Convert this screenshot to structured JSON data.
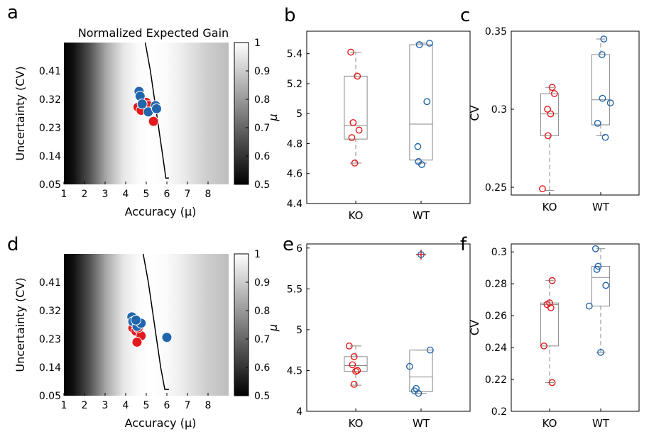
{
  "chart_data": [
    {
      "panel": "a",
      "type": "heatmap",
      "title": "Normalized Expected Gain",
      "xlabel": "Accuracy (μ)",
      "ylabel": "Uncertainty (CV)",
      "xlim": [
        1,
        9
      ],
      "ylim": [
        0.05,
        0.5
      ],
      "xticks": [
        "1",
        "2",
        "3",
        "4",
        "5",
        "6",
        "7",
        "8"
      ],
      "yticks": [
        "0.05",
        "0.14",
        "0.23",
        "0.32",
        "0.41"
      ],
      "colorbar": {
        "range": [
          0.5,
          1
        ],
        "ticks": [
          "0.5",
          "0.6",
          "0.7",
          "0.8",
          "0.9",
          "1"
        ]
      },
      "optimal_curve": [
        [
          4.95,
          0.5
        ],
        [
          5.2,
          0.41
        ],
        [
          5.4,
          0.32
        ],
        [
          5.6,
          0.23
        ],
        [
          5.8,
          0.14
        ],
        [
          5.95,
          0.07
        ],
        [
          6.1,
          0.07
        ]
      ],
      "series": [
        {
          "group": "KO",
          "color": "#e31a1c",
          "points": [
            [
              4.6,
              0.295
            ],
            [
              4.75,
              0.285
            ],
            [
              5.0,
              0.31
            ],
            [
              5.35,
              0.25
            ],
            [
              5.1,
              0.3
            ]
          ]
        },
        {
          "group": "WT",
          "color": "#2166ac",
          "points": [
            [
              4.65,
              0.345
            ],
            [
              4.7,
              0.33
            ],
            [
              4.8,
              0.305
            ],
            [
              5.1,
              0.28
            ],
            [
              5.45,
              0.3
            ],
            [
              5.5,
              0.29
            ]
          ]
        }
      ]
    },
    {
      "panel": "b",
      "type": "box",
      "ylabel": "μ",
      "ylim": [
        4.4,
        5.55
      ],
      "yticks": [
        "4.4",
        "4.6",
        "4.8",
        "5",
        "5.2",
        "5.4"
      ],
      "categories": [
        "KO",
        "WT"
      ],
      "boxes": [
        {
          "q1": 4.83,
          "median": 4.92,
          "q3": 5.25,
          "whislo": 4.67,
          "whishi": 5.41,
          "outliers": []
        },
        {
          "q1": 4.69,
          "median": 4.93,
          "q3": 5.46,
          "whislo": 4.67,
          "whishi": 5.47,
          "outliers": []
        }
      ],
      "points": [
        [
          [
            -0.15,
            5.41
          ],
          [
            0.05,
            5.25
          ],
          [
            -0.08,
            4.94
          ],
          [
            0.1,
            4.89
          ],
          [
            -0.12,
            4.84
          ],
          [
            -0.03,
            4.67
          ]
        ],
        [
          [
            -0.05,
            5.46
          ],
          [
            0.26,
            5.47
          ],
          [
            0.18,
            5.08
          ],
          [
            -0.1,
            4.78
          ],
          [
            -0.08,
            4.68
          ],
          [
            0.02,
            4.66
          ]
        ]
      ]
    },
    {
      "panel": "c",
      "type": "box",
      "ylabel": "CV",
      "ylim": [
        0.245,
        0.35
      ],
      "yticks": [
        "0.25",
        "0.3",
        "0.35"
      ],
      "categories": [
        "KO",
        "WT"
      ],
      "boxes": [
        {
          "q1": 0.283,
          "median": 0.297,
          "q3": 0.31,
          "whislo": 0.248,
          "whishi": 0.314,
          "outliers": []
        },
        {
          "q1": 0.29,
          "median": 0.306,
          "q3": 0.335,
          "whislo": 0.283,
          "whishi": 0.345,
          "outliers": []
        }
      ],
      "points": [
        [
          [
            0.1,
            0.314
          ],
          [
            0.19,
            0.31
          ],
          [
            -0.08,
            0.3
          ],
          [
            0.04,
            0.297
          ],
          [
            -0.06,
            0.283
          ],
          [
            -0.28,
            0.249
          ]
        ],
        [
          [
            0.12,
            0.345
          ],
          [
            0.05,
            0.335
          ],
          [
            0.07,
            0.307
          ],
          [
            0.38,
            0.304
          ],
          [
            -0.12,
            0.291
          ],
          [
            0.18,
            0.282
          ]
        ]
      ]
    },
    {
      "panel": "d",
      "type": "heatmap",
      "title": "",
      "xlabel": "Accuracy (μ)",
      "ylabel": "Uncertainty (CV)",
      "xlim": [
        1,
        9
      ],
      "ylim": [
        0.05,
        0.5
      ],
      "xticks": [
        "1",
        "2",
        "3",
        "4",
        "5",
        "6",
        "7",
        "8"
      ],
      "yticks": [
        "0.05",
        "0.14",
        "0.23",
        "0.32",
        "0.41"
      ],
      "colorbar": {
        "range": [
          0.5,
          1
        ],
        "ticks": [
          "0.5",
          "0.6",
          "0.7",
          "0.8",
          "0.9",
          "1"
        ]
      },
      "optimal_curve": [
        [
          4.85,
          0.5
        ],
        [
          5.1,
          0.41
        ],
        [
          5.3,
          0.32
        ],
        [
          5.5,
          0.23
        ],
        [
          5.7,
          0.14
        ],
        [
          5.9,
          0.07
        ],
        [
          6.1,
          0.07
        ]
      ],
      "series": [
        {
          "group": "KO",
          "color": "#e31a1c",
          "points": [
            [
              4.35,
              0.265
            ],
            [
              4.5,
              0.255
            ],
            [
              4.75,
              0.24
            ],
            [
              4.55,
              0.22
            ],
            [
              4.6,
              0.265
            ]
          ]
        },
        {
          "group": "WT",
          "color": "#2166ac",
          "points": [
            [
              4.3,
              0.3
            ],
            [
              4.35,
              0.285
            ],
            [
              4.55,
              0.27
            ],
            [
              4.75,
              0.28
            ],
            [
              6.0,
              0.235
            ],
            [
              4.5,
              0.29
            ]
          ]
        }
      ]
    },
    {
      "panel": "e",
      "type": "box",
      "ylabel": "μ",
      "ylim": [
        4.0,
        6.05
      ],
      "yticks": [
        "4",
        "4.5",
        "5",
        "5.5",
        "6"
      ],
      "categories": [
        "KO",
        "WT"
      ],
      "boxes": [
        {
          "q1": 4.49,
          "median": 4.56,
          "q3": 4.67,
          "whislo": 4.32,
          "whishi": 4.8,
          "outliers": []
        },
        {
          "q1": 4.24,
          "median": 4.42,
          "q3": 4.75,
          "whislo": 4.22,
          "whishi": 4.75,
          "outliers": [
            5.92
          ]
        }
      ],
      "points": [
        [
          [
            -0.2,
            4.8
          ],
          [
            -0.05,
            4.67
          ],
          [
            -0.1,
            4.57
          ],
          [
            0.05,
            4.5
          ],
          [
            0.0,
            4.49
          ],
          [
            -0.05,
            4.33
          ]
        ],
        [
          [
            -0.35,
            4.55
          ],
          [
            0.28,
            4.75
          ],
          [
            -0.15,
            4.28
          ],
          [
            -0.2,
            4.25
          ],
          [
            -0.08,
            4.22
          ],
          [
            0.0,
            5.92
          ]
        ]
      ]
    },
    {
      "panel": "f",
      "type": "box",
      "ylabel": "CV",
      "ylim": [
        0.2,
        0.305
      ],
      "yticks": [
        "0.2",
        "0.22",
        "0.24",
        "0.26",
        "0.28",
        "0.3"
      ],
      "categories": [
        "KO",
        "WT"
      ],
      "boxes": [
        {
          "q1": 0.241,
          "median": 0.267,
          "q3": 0.268,
          "whislo": 0.218,
          "whishi": 0.282,
          "outliers": []
        },
        {
          "q1": 0.266,
          "median": 0.284,
          "q3": 0.291,
          "whislo": 0.237,
          "whishi": 0.302,
          "outliers": []
        }
      ],
      "points": [
        [
          [
            0.1,
            0.282
          ],
          [
            -0.1,
            0.267
          ],
          [
            0.0,
            0.268
          ],
          [
            0.05,
            0.265
          ],
          [
            -0.22,
            0.241
          ],
          [
            0.1,
            0.218
          ]
        ],
        [
          [
            -0.2,
            0.302
          ],
          [
            -0.1,
            0.291
          ],
          [
            -0.15,
            0.289
          ],
          [
            0.2,
            0.279
          ],
          [
            -0.45,
            0.266
          ],
          [
            0.0,
            0.237
          ]
        ]
      ]
    }
  ],
  "panel_labels": [
    "a",
    "b",
    "c",
    "d",
    "e",
    "f"
  ],
  "colors": {
    "KO": "#e31a1c",
    "WT": "#2166ac",
    "box": "#888888"
  }
}
